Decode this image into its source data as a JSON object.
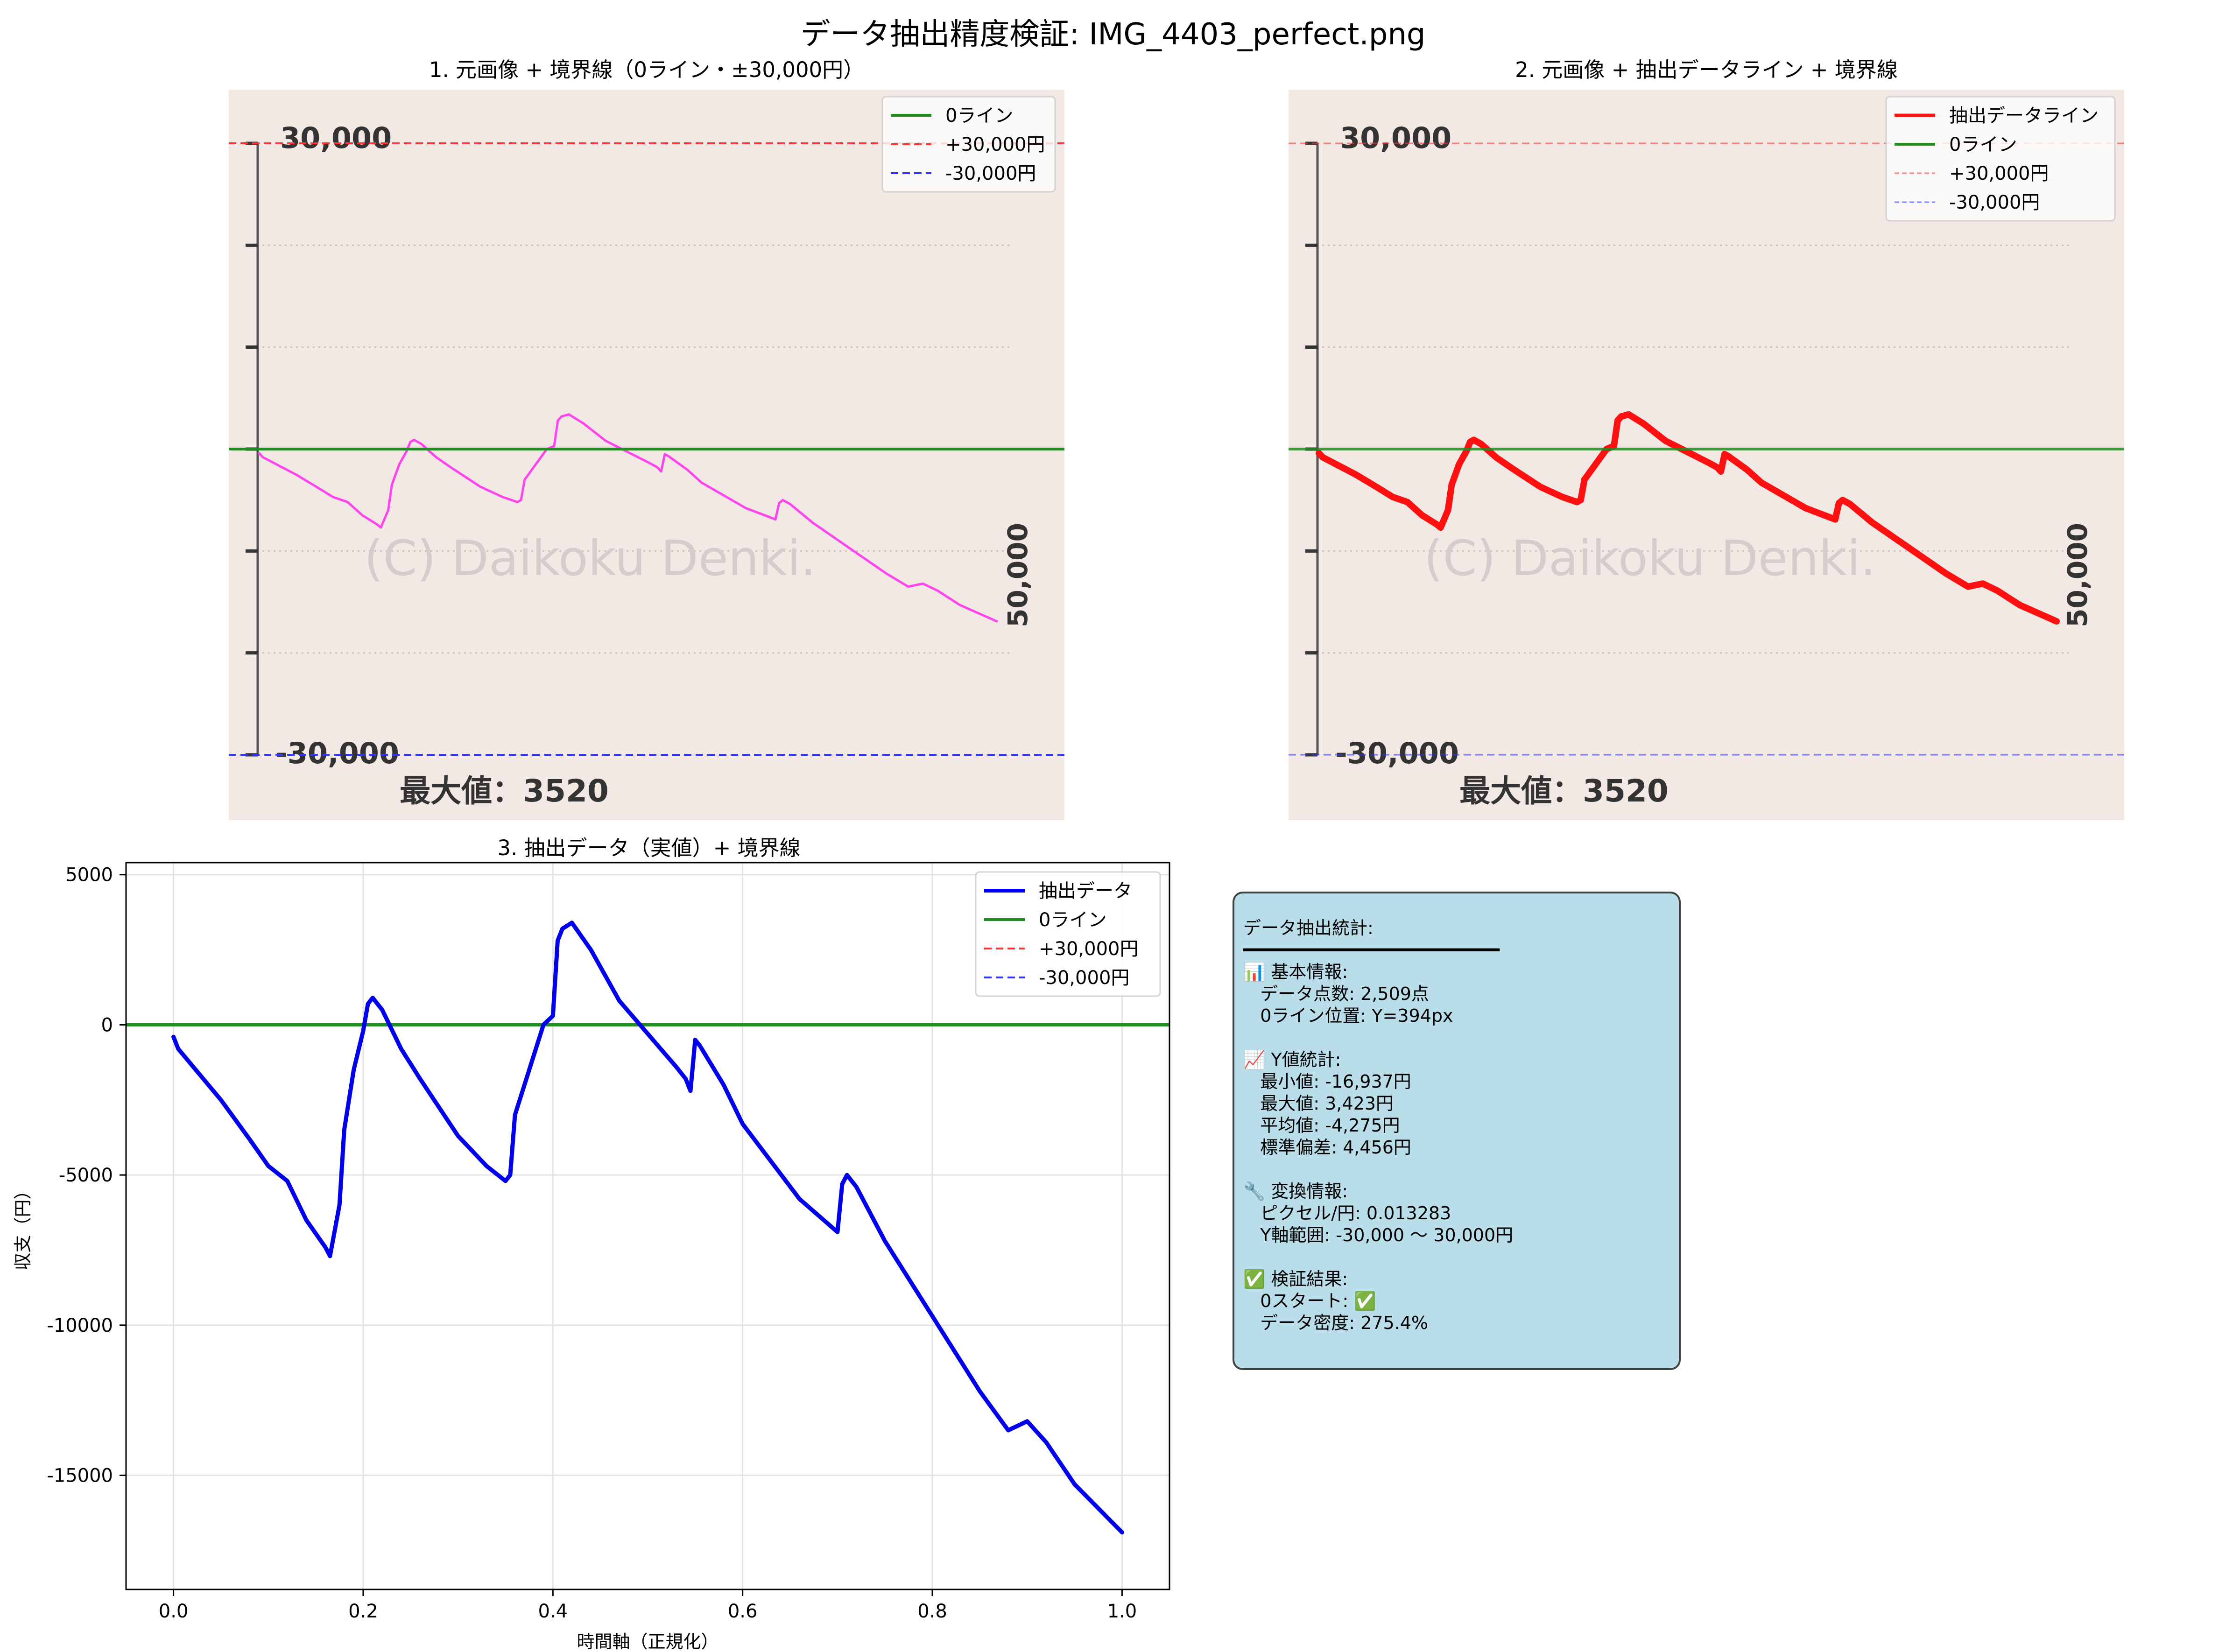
{
  "suptitle": "データ抽出精度検証: IMG_4403_perfect.png",
  "panel1": {
    "title": "1. 元画像 + 境界線（0ライン・±30,000円）",
    "legend": [
      "0ライン",
      "+30,000円",
      "-30,000円"
    ]
  },
  "panel2": {
    "title": "2. 元画像 + 抽出データライン + 境界線",
    "legend": [
      "抽出データライン",
      "0ライン",
      "+30,000円",
      "-30,000円"
    ]
  },
  "embedded_image": {
    "top_label": "30,000",
    "bottom_label": "-30,000",
    "right_label": "50,000",
    "watermark": "(C) Daikoku Denki.",
    "max_label": "最大値：3520"
  },
  "panel3": {
    "title": "3. 抽出データ（実値）+ 境界線",
    "legend": [
      "抽出データ",
      "0ライン",
      "+30,000円",
      "-30,000円"
    ]
  },
  "colors": {
    "pink_line": "#ff44ee",
    "red_line": "#ff1010",
    "blue_line": "#0000ee",
    "zero_line": "#228b22",
    "plus_line": "#ff3333",
    "minus_line": "#3333ff",
    "image_bg": "#f3e9e4"
  },
  "chart_data": {
    "type": "line",
    "title": "3. 抽出データ（実値）+ 境界線",
    "xlabel": "時間軸（正規化）",
    "ylabel": "収支（円）",
    "xlim": [
      -0.05,
      1.05
    ],
    "ylim": [
      -18800,
      5400
    ],
    "xticks": [
      "0.0",
      "0.2",
      "0.4",
      "0.6",
      "0.8",
      "1.0"
    ],
    "yticks": [
      "5000",
      "0",
      "-5000",
      "-10000",
      "-15000"
    ],
    "grid": true,
    "legend_position": "top-right",
    "reference_lines": [
      {
        "name": "0ライン",
        "y": 0
      },
      {
        "name": "+30,000円",
        "y": 30000
      },
      {
        "name": "-30,000円",
        "y": -30000
      }
    ],
    "series": [
      {
        "name": "抽出データ",
        "x": [
          0.0,
          0.005,
          0.05,
          0.08,
          0.1,
          0.12,
          0.14,
          0.16,
          0.165,
          0.175,
          0.18,
          0.19,
          0.2,
          0.205,
          0.21,
          0.22,
          0.24,
          0.26,
          0.3,
          0.33,
          0.35,
          0.355,
          0.36,
          0.38,
          0.39,
          0.4,
          0.405,
          0.41,
          0.42,
          0.44,
          0.47,
          0.5,
          0.53,
          0.54,
          0.545,
          0.55,
          0.555,
          0.58,
          0.6,
          0.66,
          0.7,
          0.705,
          0.71,
          0.72,
          0.75,
          0.8,
          0.85,
          0.88,
          0.9,
          0.92,
          0.95,
          1.0
        ],
        "y": [
          -400,
          -800,
          -2500,
          -3800,
          -4700,
          -5200,
          -6500,
          -7400,
          -7700,
          -6000,
          -3500,
          -1500,
          -200,
          700,
          900,
          500,
          -800,
          -1800,
          -3700,
          -4700,
          -5200,
          -5000,
          -3000,
          -1000,
          0,
          300,
          2800,
          3200,
          3400,
          2500,
          800,
          -300,
          -1400,
          -1800,
          -2200,
          -500,
          -700,
          -2000,
          -3300,
          -5800,
          -6900,
          -5300,
          -5000,
          -5400,
          -7200,
          -9700,
          -12200,
          -13500,
          -13200,
          -13900,
          -15300,
          -16900
        ]
      }
    ]
  },
  "stats": {
    "header": "データ抽出統計:",
    "basic_title": "📊 基本情報:",
    "points": "データ点数: 2,509点",
    "zero_pos": "0ライン位置: Y=394px",
    "y_title": "📈 Y値統計:",
    "min": "最小値: -16,937円",
    "max": "最大値: 3,423円",
    "mean": "平均値: -4,275円",
    "std": "標準偏差: 4,456円",
    "conv_title": "🔧 変換情報:",
    "px_per_yen": "ピクセル/円: 0.013283",
    "y_range": "Y軸範囲: -30,000 〜 30,000円",
    "verify_title": "✅ 検証結果:",
    "zero_start": "0スタート: ✅",
    "density": "データ密度: 275.4%"
  }
}
